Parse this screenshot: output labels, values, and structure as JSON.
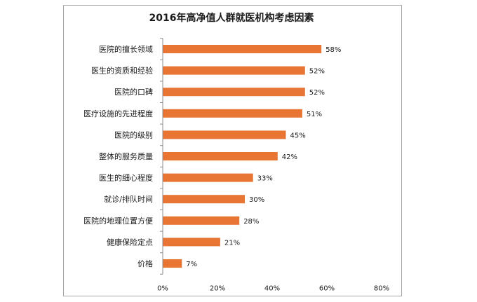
{
  "chart_data": {
    "type": "bar",
    "orientation": "horizontal",
    "title": "2016年高净值人群就医机构考虑因素",
    "categories": [
      "医院的擅长领域",
      "医生的资质和经验",
      "医院的口碑",
      "医疗设施的先进程度",
      "医院的级别",
      "整体的服务质量",
      "医生的细心程度",
      "就诊/排队时间",
      "医院的地理位置方便",
      "健康保险定点",
      "价格"
    ],
    "values": [
      58,
      52,
      52,
      51,
      45,
      42,
      33,
      30,
      28,
      21,
      7
    ],
    "value_labels": [
      "58%",
      "52%",
      "52%",
      "51%",
      "45%",
      "42%",
      "33%",
      "30%",
      "28%",
      "21%",
      "7%"
    ],
    "xlim": [
      0,
      80
    ],
    "xticks": [
      0,
      20,
      40,
      60,
      80
    ],
    "xtick_labels": [
      "0%",
      "20%",
      "40%",
      "60%",
      "80%"
    ],
    "xlabel": "",
    "ylabel": "",
    "grid": false,
    "legend": "none",
    "colors": {
      "bar": "#e87533",
      "axis": "#8c8c8c",
      "frame": "#a6a6a6"
    }
  }
}
